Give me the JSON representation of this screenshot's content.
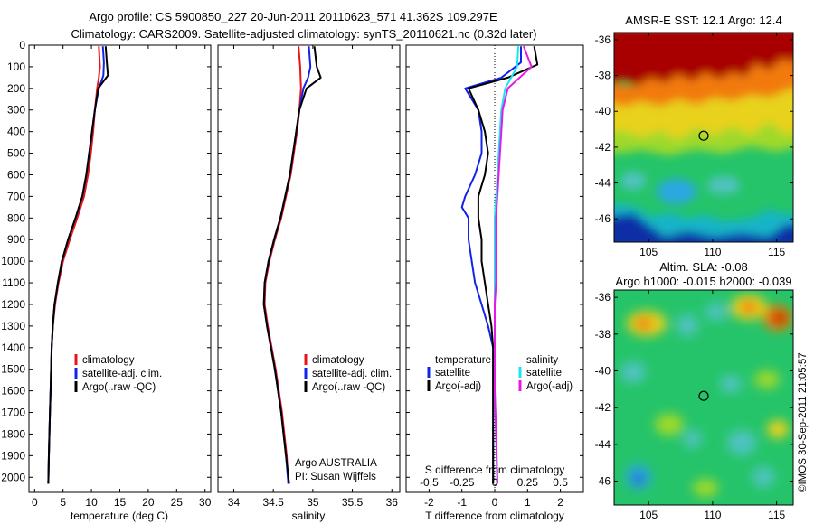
{
  "title_line1": "Argo profile: CS 5900850_227 20-Jun-2011 20110623_571 41.362S 109.297E",
  "title_line2": "Climatology: CARS2009. Satellite-adjusted climatology: synTS_20110621.nc (0.32d later)",
  "side_text": "©IMOS 30-Sep-2011 21:05:57",
  "colors": {
    "climatology": "#e8141b",
    "satellite": "#1423e8",
    "argo": "#000000",
    "sal_satellite": "#19e6f0",
    "sal_argo": "#e619e6"
  },
  "chart_data": [
    {
      "type": "line",
      "panel": "temperature",
      "xlabel": "temperature (deg C)",
      "ylabel": "",
      "xlim": [
        -1,
        31
      ],
      "ylim": [
        2070,
        0
      ],
      "xticks": [
        0,
        5,
        10,
        15,
        20,
        25,
        30
      ],
      "yticks": [
        0,
        100,
        200,
        300,
        400,
        500,
        600,
        700,
        800,
        900,
        1000,
        1100,
        1200,
        1300,
        1400,
        1500,
        1600,
        1700,
        1800,
        1900,
        2000
      ],
      "legend": [
        "climatology",
        "satellite-adj. clim.",
        "Argo(..raw -QC)"
      ],
      "legend_position": "lower-right",
      "series": [
        {
          "name": "climatology",
          "color": "climatology",
          "points": [
            [
              11.3,
              5
            ],
            [
              11.5,
              100
            ],
            [
              11.3,
              150
            ],
            [
              11.0,
              200
            ],
            [
              10.6,
              300
            ],
            [
              10.3,
              400
            ],
            [
              9.9,
              500
            ],
            [
              9.4,
              600
            ],
            [
              8.7,
              700
            ],
            [
              7.5,
              800
            ],
            [
              6.2,
              900
            ],
            [
              5.0,
              1000
            ],
            [
              4.2,
              1100
            ],
            [
              3.6,
              1200
            ],
            [
              3.2,
              1300
            ],
            [
              3.0,
              1400
            ],
            [
              2.9,
              1500
            ],
            [
              2.8,
              1600
            ],
            [
              2.7,
              1700
            ],
            [
              2.6,
              1800
            ],
            [
              2.5,
              1900
            ],
            [
              2.4,
              2030
            ]
          ]
        },
        {
          "name": "satellite-adj. clim.",
          "color": "satellite",
          "points": [
            [
              12.0,
              5
            ],
            [
              12.2,
              80
            ],
            [
              12.1,
              140
            ],
            [
              11.3,
              200
            ],
            [
              10.6,
              300
            ],
            [
              10.1,
              400
            ],
            [
              9.6,
              500
            ],
            [
              9.1,
              600
            ],
            [
              8.4,
              700
            ],
            [
              7.2,
              800
            ],
            [
              5.9,
              900
            ],
            [
              4.8,
              1000
            ],
            [
              4.1,
              1100
            ],
            [
              3.5,
              1200
            ],
            [
              3.2,
              1300
            ],
            [
              3.0,
              1400
            ],
            [
              2.9,
              1500
            ],
            [
              2.8,
              1600
            ],
            [
              2.7,
              1700
            ],
            [
              2.6,
              1800
            ],
            [
              2.5,
              1900
            ],
            [
              2.4,
              2030
            ]
          ]
        },
        {
          "name": "Argo(..raw -QC)",
          "color": "argo",
          "points": [
            [
              12.5,
              5
            ],
            [
              12.7,
              80
            ],
            [
              12.9,
              140
            ],
            [
              11.2,
              200
            ],
            [
              10.6,
              300
            ],
            [
              10.1,
              400
            ],
            [
              9.6,
              500
            ],
            [
              9.1,
              600
            ],
            [
              8.4,
              700
            ],
            [
              7.2,
              800
            ],
            [
              5.9,
              900
            ],
            [
              4.8,
              1000
            ],
            [
              4.1,
              1100
            ],
            [
              3.5,
              1200
            ],
            [
              3.2,
              1300
            ],
            [
              3.0,
              1400
            ],
            [
              2.9,
              1500
            ],
            [
              2.8,
              1600
            ],
            [
              2.7,
              1700
            ],
            [
              2.6,
              1800
            ],
            [
              2.5,
              1900
            ],
            [
              2.4,
              2030
            ]
          ]
        }
      ]
    },
    {
      "type": "line",
      "panel": "salinity",
      "xlabel": "salinity",
      "xlim": [
        33.8,
        36.1
      ],
      "ylim": [
        2070,
        0
      ],
      "xticks": [
        34,
        34.5,
        35,
        35.5,
        36
      ],
      "legend": [
        "climatology",
        "satellite-adj. clim.",
        "Argo(..raw -QC)"
      ],
      "legend_position": "lower-right",
      "annotations": [
        "Argo AUSTRALIA",
        "PI: Susan Wijffels"
      ],
      "series": [
        {
          "name": "climatology",
          "color": "climatology",
          "points": [
            [
              34.82,
              5
            ],
            [
              34.84,
              100
            ],
            [
              34.85,
              200
            ],
            [
              34.83,
              300
            ],
            [
              34.8,
              400
            ],
            [
              34.76,
              500
            ],
            [
              34.72,
              600
            ],
            [
              34.66,
              700
            ],
            [
              34.6,
              800
            ],
            [
              34.52,
              900
            ],
            [
              34.45,
              1000
            ],
            [
              34.4,
              1100
            ],
            [
              34.39,
              1200
            ],
            [
              34.43,
              1300
            ],
            [
              34.48,
              1400
            ],
            [
              34.53,
              1500
            ],
            [
              34.57,
              1600
            ],
            [
              34.61,
              1700
            ],
            [
              34.64,
              1800
            ],
            [
              34.67,
              1900
            ],
            [
              34.69,
              2030
            ]
          ]
        },
        {
          "name": "satellite-adj. clim.",
          "color": "satellite",
          "points": [
            [
              34.95,
              5
            ],
            [
              34.97,
              100
            ],
            [
              34.94,
              150
            ],
            [
              34.88,
              200
            ],
            [
              34.83,
              300
            ],
            [
              34.79,
              400
            ],
            [
              34.75,
              500
            ],
            [
              34.71,
              600
            ],
            [
              34.65,
              700
            ],
            [
              34.59,
              800
            ],
            [
              34.51,
              900
            ],
            [
              34.44,
              1000
            ],
            [
              34.39,
              1100
            ],
            [
              34.38,
              1200
            ],
            [
              34.42,
              1300
            ],
            [
              34.47,
              1400
            ],
            [
              34.52,
              1500
            ],
            [
              34.56,
              1600
            ],
            [
              34.6,
              1700
            ],
            [
              34.63,
              1800
            ],
            [
              34.66,
              1900
            ],
            [
              34.69,
              2030
            ]
          ]
        },
        {
          "name": "Argo(..raw -QC)",
          "color": "argo",
          "points": [
            [
              35.02,
              5
            ],
            [
              35.05,
              100
            ],
            [
              35.1,
              150
            ],
            [
              34.92,
              200
            ],
            [
              34.83,
              300
            ],
            [
              34.79,
              400
            ],
            [
              34.75,
              500
            ],
            [
              34.71,
              600
            ],
            [
              34.65,
              700
            ],
            [
              34.59,
              800
            ],
            [
              34.51,
              900
            ],
            [
              34.44,
              1000
            ],
            [
              34.39,
              1100
            ],
            [
              34.38,
              1200
            ],
            [
              34.42,
              1300
            ],
            [
              34.47,
              1400
            ],
            [
              34.52,
              1500
            ],
            [
              34.56,
              1600
            ],
            [
              34.6,
              1700
            ],
            [
              34.63,
              1800
            ],
            [
              34.66,
              1900
            ],
            [
              34.7,
              2030
            ]
          ]
        }
      ]
    },
    {
      "type": "line",
      "panel": "differences",
      "xlabel": "T difference from climatology",
      "x2label": "S difference from climatology",
      "xlim": [
        -2.7,
        2.7
      ],
      "x2lim": [
        -0.675,
        0.675
      ],
      "ylim": [
        2070,
        0
      ],
      "xticks": [
        -2,
        -1,
        0,
        1,
        2
      ],
      "x2ticks": [
        -0.5,
        -0.25,
        0,
        0.25,
        0.5
      ],
      "legend_left_title": "temperature",
      "legend_right_title": "salinity",
      "legend": [
        "satellite",
        "Argo(-adj)",
        "satellite",
        "Argo(-adj)"
      ],
      "series": [
        {
          "name": "satellite",
          "variable": "temperature",
          "color": "satellite",
          "points": [
            [
              0.8,
              5
            ],
            [
              0.8,
              80
            ],
            [
              0.2,
              150
            ],
            [
              -0.9,
              200
            ],
            [
              -0.5,
              300
            ],
            [
              -0.4,
              400
            ],
            [
              -0.4,
              500
            ],
            [
              -0.6,
              600
            ],
            [
              -0.9,
              700
            ],
            [
              -1.0,
              750
            ],
            [
              -0.8,
              800
            ],
            [
              -0.8,
              900
            ],
            [
              -0.7,
              1000
            ],
            [
              -0.6,
              1100
            ],
            [
              -0.4,
              1200
            ],
            [
              -0.2,
              1300
            ],
            [
              -0.05,
              1400
            ],
            [
              -0.05,
              1600
            ],
            [
              -0.05,
              1800
            ],
            [
              -0.05,
              2030
            ]
          ]
        },
        {
          "name": "Argo(-adj)",
          "variable": "temperature",
          "color": "argo",
          "points": [
            [
              1.2,
              5
            ],
            [
              1.3,
              90
            ],
            [
              0.4,
              150
            ],
            [
              -0.8,
              200
            ],
            [
              -0.5,
              300
            ],
            [
              -0.3,
              400
            ],
            [
              -0.2,
              500
            ],
            [
              -0.3,
              600
            ],
            [
              -0.5,
              700
            ],
            [
              -0.5,
              800
            ],
            [
              -0.4,
              900
            ],
            [
              -0.4,
              1000
            ],
            [
              -0.3,
              1100
            ],
            [
              -0.2,
              1200
            ],
            [
              -0.1,
              1300
            ],
            [
              -0.05,
              1400
            ],
            [
              -0.05,
              1600
            ],
            [
              -0.05,
              1800
            ],
            [
              -0.05,
              2030
            ]
          ]
        },
        {
          "name": "satellite",
          "variable": "salinity",
          "color": "sal_satellite",
          "points": [
            [
              0.18,
              5
            ],
            [
              0.17,
              100
            ],
            [
              0.08,
              200
            ],
            [
              0.05,
              300
            ],
            [
              0.04,
              400
            ],
            [
              0.03,
              500
            ],
            [
              0.02,
              600
            ],
            [
              0.01,
              700
            ],
            [
              0.0,
              800
            ],
            [
              0.0,
              900
            ],
            [
              0.0,
              1000
            ],
            [
              0.0,
              1100
            ],
            [
              0.0,
              1200
            ],
            [
              0.0,
              1300
            ],
            [
              0.0,
              1400
            ],
            [
              0.0,
              1600
            ],
            [
              0.01,
              1800
            ],
            [
              0.02,
              2030
            ]
          ]
        },
        {
          "name": "Argo(-adj)",
          "variable": "salinity",
          "color": "sal_argo",
          "points": [
            [
              0.22,
              5
            ],
            [
              0.28,
              100
            ],
            [
              0.1,
              200
            ],
            [
              0.06,
              300
            ],
            [
              0.05,
              400
            ],
            [
              0.04,
              500
            ],
            [
              0.03,
              600
            ],
            [
              0.02,
              700
            ],
            [
              0.01,
              800
            ],
            [
              0.01,
              900
            ],
            [
              0.01,
              1000
            ],
            [
              0.01,
              1100
            ],
            [
              0.0,
              1200
            ],
            [
              0.0,
              1300
            ],
            [
              0.0,
              1400
            ],
            [
              0.0,
              1600
            ],
            [
              0.01,
              1800
            ],
            [
              0.02,
              2030
            ]
          ]
        }
      ]
    },
    {
      "type": "heatmap",
      "panel": "sst_map",
      "title": "AMSR-E SST: 12.1  Argo: 12.4",
      "xlim": [
        102.3,
        116.3
      ],
      "ylim": [
        -47.3,
        -35.6
      ],
      "xticks": [
        105,
        110,
        115
      ],
      "yticks": [
        -36,
        -38,
        -40,
        -42,
        -44,
        -46
      ],
      "marker": [
        109.3,
        -41.36
      ]
    },
    {
      "type": "heatmap",
      "panel": "sla_map",
      "title": "Altim. SLA: -0.08",
      "subtitle": "Argo h1000: -0.015 h2000: -0.039",
      "xlim": [
        102.3,
        116.3
      ],
      "ylim": [
        -47.3,
        -35.6
      ],
      "xticks": [
        105,
        110,
        115
      ],
      "yticks": [
        -36,
        -38,
        -40,
        -42,
        -44,
        -46
      ],
      "marker": [
        109.3,
        -41.36
      ]
    }
  ]
}
